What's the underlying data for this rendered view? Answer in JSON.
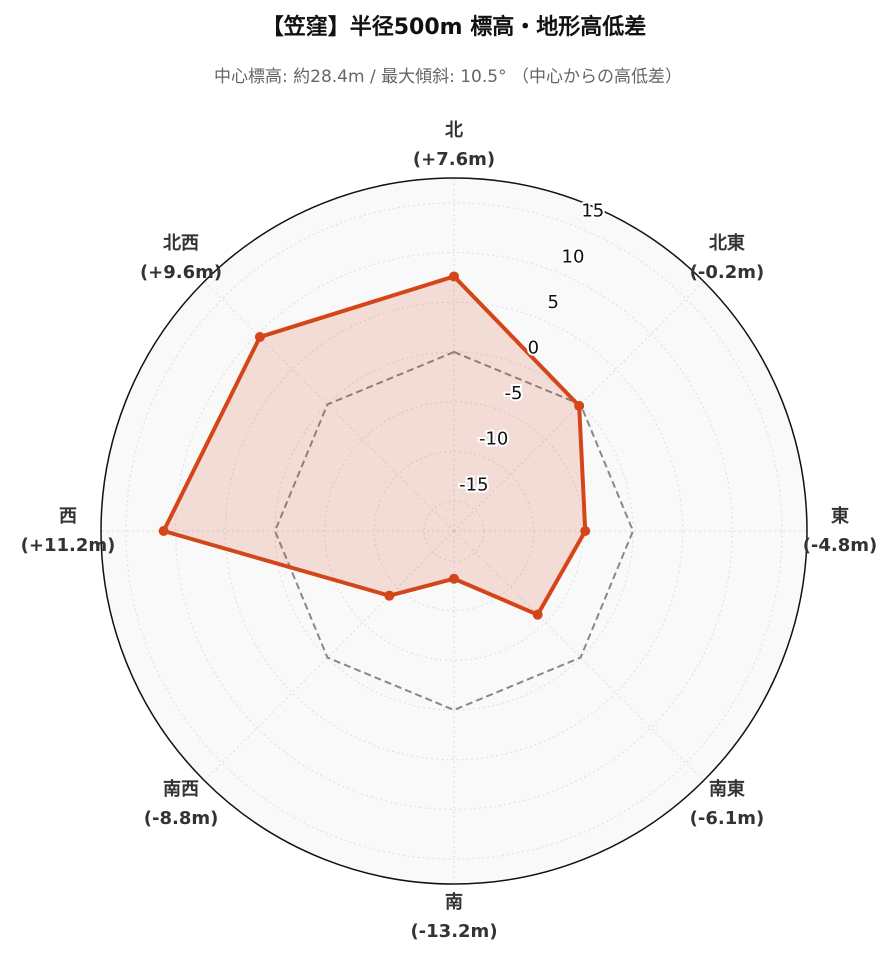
{
  "chart_data": {
    "type": "radar",
    "title": "【笠窪】半径500m 標高・地形高低差",
    "subtitle": "中心標高: 約28.4m / 最大傾斜: 10.5° （中心からの高低差）",
    "categories": [
      "北",
      "北東",
      "東",
      "南東",
      "南",
      "南西",
      "西",
      "北西"
    ],
    "values": [
      7.6,
      -0.2,
      -4.8,
      -6.1,
      -13.2,
      -8.8,
      11.2,
      9.6
    ],
    "value_labels": [
      "(+7.6m)",
      "(-0.2m)",
      "(-4.8m)",
      "(-6.1m)",
      "(-13.2m)",
      "(-8.8m)",
      "(+11.2m)",
      "(+9.6m)"
    ],
    "color": "#d4461a",
    "baseline": 0,
    "ylim": [
      -18,
      17.5
    ],
    "yticks": [
      -15,
      -10,
      -5,
      0,
      5,
      10,
      15
    ],
    "grid": true
  }
}
